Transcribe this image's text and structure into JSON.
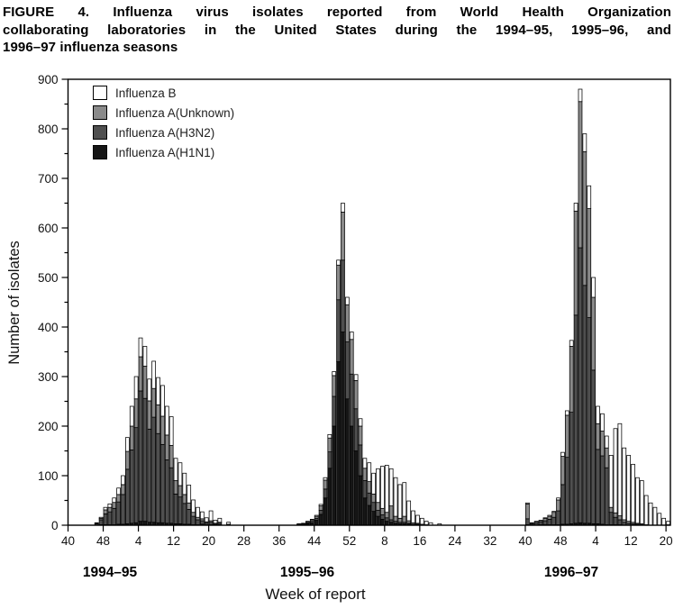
{
  "figure": {
    "title_lines": [
      "FIGURE 4. Influenza virus isolates reported from World Health Organization",
      "collaborating laboratories in the United States during the 1994–95, 1995–96, and",
      "1996–97 influenza seasons"
    ]
  },
  "chart_data": {
    "type": "bar",
    "stacked": true,
    "xlabel": "Week of report",
    "ylabel": "Number of isolates",
    "ylim": [
      0,
      900
    ],
    "y_major_step": 100,
    "y_minor_step": 50,
    "grid": false,
    "legend_position": "top-left-inside",
    "weeks_total": 137,
    "x_start": "week 40 of 1994",
    "y_ticks": [
      {
        "value": 0,
        "label": "0"
      },
      {
        "value": 100,
        "label": "100"
      },
      {
        "value": 200,
        "label": "200"
      },
      {
        "value": 300,
        "label": "300"
      },
      {
        "value": 400,
        "label": "400"
      },
      {
        "value": 500,
        "label": "500"
      },
      {
        "value": 600,
        "label": "600"
      },
      {
        "value": 700,
        "label": "700"
      },
      {
        "value": 800,
        "label": "800"
      },
      {
        "value": 900,
        "label": "900"
      }
    ],
    "x_ticks": [
      {
        "index": 0,
        "label": "40"
      },
      {
        "index": 8,
        "label": "48"
      },
      {
        "index": 16,
        "label": "4"
      },
      {
        "index": 24,
        "label": "12"
      },
      {
        "index": 32,
        "label": "20"
      },
      {
        "index": 40,
        "label": "28"
      },
      {
        "index": 48,
        "label": "36"
      },
      {
        "index": 56,
        "label": "44"
      },
      {
        "index": 64,
        "label": "52"
      },
      {
        "index": 72,
        "label": "8"
      },
      {
        "index": 80,
        "label": "16"
      },
      {
        "index": 88,
        "label": "24"
      },
      {
        "index": 96,
        "label": "32"
      },
      {
        "index": 104,
        "label": "40"
      },
      {
        "index": 112,
        "label": "48"
      },
      {
        "index": 120,
        "label": "4"
      },
      {
        "index": 128,
        "label": "12"
      },
      {
        "index": 136,
        "label": "20"
      }
    ],
    "seasons": [
      {
        "label": "1994–95",
        "center_index": 9.5
      },
      {
        "label": "1995–96",
        "center_index": 54.5
      },
      {
        "label": "1996–97",
        "center_index": 114.5
      }
    ],
    "series_legend": [
      {
        "key": "b",
        "name": "Influenza B",
        "color": "#ffffff"
      },
      {
        "key": "u",
        "name": "Influenza A(Unknown)",
        "color": "#8a8a8a"
      },
      {
        "key": "h3",
        "name": "Influenza A(H3N2)",
        "color": "#4f4f4f"
      },
      {
        "key": "h1",
        "name": "Influenza A(H1N1)",
        "color": "#161616"
      }
    ],
    "bar_value_order_bottom_to_top": [
      "h1",
      "h3",
      "u",
      "b"
    ],
    "clusters": [
      {
        "season": "1994–95",
        "start_index": 6,
        "week_labels": [
          "46",
          "47",
          "48",
          "49",
          "50",
          "51",
          "52",
          "1",
          "2",
          "3",
          "4",
          "5",
          "6",
          "7",
          "8",
          "9",
          "10",
          "11",
          "12",
          "13",
          "14",
          "15",
          "16",
          "17",
          "18",
          "19",
          "20",
          "21",
          "22",
          "23",
          "24"
        ],
        "bars": [
          [
            0,
            3,
            1,
            1
          ],
          [
            1,
            10,
            3,
            2
          ],
          [
            1,
            22,
            8,
            5
          ],
          [
            1,
            26,
            9,
            7
          ],
          [
            1,
            33,
            12,
            9
          ],
          [
            2,
            45,
            15,
            13
          ],
          [
            2,
            60,
            20,
            18
          ],
          [
            3,
            110,
            36,
            28
          ],
          [
            4,
            148,
            48,
            40
          ],
          [
            5,
            192,
            58,
            45
          ],
          [
            8,
            263,
            69,
            38
          ],
          [
            8,
            248,
            65,
            40
          ],
          [
            6,
            188,
            57,
            44
          ],
          [
            6,
            212,
            58,
            55
          ],
          [
            5,
            180,
            58,
            55
          ],
          [
            5,
            158,
            57,
            62
          ],
          [
            4,
            128,
            50,
            58
          ],
          [
            4,
            112,
            45,
            58
          ],
          [
            3,
            60,
            27,
            45
          ],
          [
            3,
            54,
            23,
            46
          ],
          [
            2,
            42,
            18,
            43
          ],
          [
            2,
            30,
            13,
            36
          ],
          [
            1,
            17,
            8,
            25
          ],
          [
            1,
            10,
            5,
            20
          ],
          [
            2,
            7,
            4,
            14
          ],
          [
            1,
            4,
            2,
            8
          ],
          [
            1,
            5,
            3,
            20
          ],
          [
            0,
            2,
            2,
            6
          ],
          [
            1,
            3,
            2,
            8
          ],
          [
            0,
            0,
            0,
            0
          ],
          [
            0,
            1,
            1,
            4
          ]
        ]
      },
      {
        "season": "1995–96",
        "start_index": 52,
        "week_labels": [
          "40",
          "41",
          "42",
          "43",
          "44",
          "45",
          "46",
          "47",
          "48",
          "49",
          "50",
          "51",
          "52",
          "1",
          "2",
          "3",
          "4",
          "5",
          "6",
          "7",
          "8",
          "9",
          "10",
          "11",
          "12",
          "13",
          "14",
          "15",
          "16",
          "17",
          "18",
          "19",
          "20"
        ],
        "bars": [
          [
            0,
            1,
            1,
            1
          ],
          [
            1,
            1,
            1,
            1
          ],
          [
            3,
            2,
            2,
            1
          ],
          [
            5,
            3,
            3,
            1
          ],
          [
            10,
            4,
            4,
            2
          ],
          [
            22,
            8,
            9,
            3
          ],
          [
            55,
            18,
            18,
            5
          ],
          [
            115,
            33,
            28,
            7
          ],
          [
            200,
            60,
            42,
            8
          ],
          [
            330,
            125,
            70,
            10
          ],
          [
            390,
            145,
            97,
            18
          ],
          [
            255,
            115,
            75,
            15
          ],
          [
            200,
            105,
            70,
            15
          ],
          [
            150,
            85,
            57,
            12
          ],
          [
            100,
            62,
            38,
            15
          ],
          [
            55,
            35,
            25,
            20
          ],
          [
            40,
            25,
            23,
            38
          ],
          [
            28,
            18,
            17,
            42
          ],
          [
            18,
            12,
            16,
            68
          ],
          [
            12,
            9,
            13,
            85
          ],
          [
            8,
            7,
            11,
            95
          ],
          [
            6,
            5,
            28,
            75
          ],
          [
            4,
            4,
            10,
            78
          ],
          [
            3,
            3,
            8,
            68
          ],
          [
            3,
            3,
            12,
            68
          ],
          [
            2,
            2,
            5,
            40
          ],
          [
            1,
            1,
            3,
            24
          ],
          [
            1,
            1,
            2,
            16
          ],
          [
            0,
            0,
            2,
            12
          ],
          [
            0,
            0,
            1,
            7
          ],
          [
            0,
            0,
            0,
            5
          ],
          [
            0,
            0,
            0,
            0
          ],
          [
            0,
            0,
            0,
            3
          ]
        ]
      },
      {
        "season": "1996–97",
        "start_index": 104,
        "week_labels": [
          "40",
          "41",
          "42",
          "43",
          "44",
          "45",
          "46",
          "47",
          "48",
          "49",
          "50",
          "51",
          "52",
          "1",
          "2",
          "3",
          "4",
          "5",
          "6",
          "7",
          "8",
          "9",
          "10",
          "11",
          "12",
          "13",
          "14",
          "15",
          "16",
          "17",
          "18",
          "19",
          "20"
        ],
        "bars": [
          [
            1,
            12,
            30,
            2
          ],
          [
            0,
            2,
            2,
            1
          ],
          [
            0,
            4,
            3,
            1
          ],
          [
            1,
            5,
            3,
            1
          ],
          [
            1,
            8,
            5,
            1
          ],
          [
            1,
            11,
            6,
            2
          ],
          [
            1,
            15,
            10,
            2
          ],
          [
            1,
            28,
            22,
            4
          ],
          [
            2,
            80,
            57,
            8
          ],
          [
            2,
            135,
            85,
            9
          ],
          [
            3,
            225,
            133,
            12
          ],
          [
            4,
            420,
            210,
            16
          ],
          [
            5,
            555,
            295,
            25
          ],
          [
            4,
            480,
            270,
            36
          ],
          [
            4,
            415,
            220,
            46
          ],
          [
            3,
            310,
            147,
            40
          ],
          [
            3,
            150,
            52,
            35
          ],
          [
            2,
            138,
            50,
            35
          ],
          [
            1,
            115,
            40,
            24
          ],
          [
            1,
            25,
            10,
            105
          ],
          [
            1,
            15,
            9,
            170
          ],
          [
            1,
            10,
            8,
            186
          ],
          [
            0,
            6,
            5,
            145
          ],
          [
            0,
            4,
            4,
            133
          ],
          [
            0,
            3,
            3,
            117
          ],
          [
            0,
            2,
            2,
            92
          ],
          [
            0,
            1,
            2,
            87
          ],
          [
            0,
            0,
            1,
            59
          ],
          [
            0,
            0,
            0,
            45
          ],
          [
            0,
            0,
            0,
            36
          ],
          [
            0,
            0,
            0,
            24
          ],
          [
            0,
            0,
            0,
            14
          ],
          [
            0,
            0,
            1,
            7
          ]
        ]
      }
    ]
  }
}
